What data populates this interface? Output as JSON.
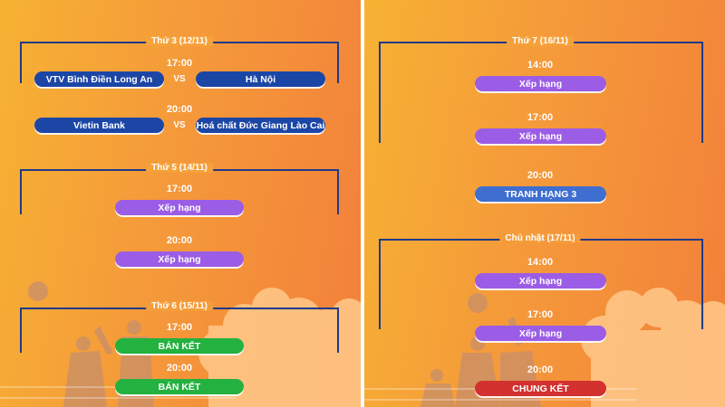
{
  "left": {
    "days": [
      {
        "label": "Thứ 3 (12/11)",
        "slots": [
          {
            "time": "17:00",
            "home": "VTV Bình Điền Long An",
            "vs": "VS",
            "away": "Hà Nội"
          },
          {
            "time": "20:00",
            "home": "Vietin Bank",
            "vs": "VS",
            "away": "Hoá chất Đức Giang Lào Cai"
          }
        ]
      },
      {
        "label": "Thứ 5 (14/11)",
        "slots": [
          {
            "time": "17:00",
            "match": "Xếp hạng"
          },
          {
            "time": "20:00",
            "match": "Xếp hạng"
          }
        ]
      },
      {
        "label": "Thứ 6 (15/11)",
        "slots": [
          {
            "time": "17:00",
            "match": "BÁN KẾT"
          },
          {
            "time": "20:00",
            "match": "BÁN KẾT"
          }
        ]
      }
    ]
  },
  "right": {
    "days": [
      {
        "label": "Thứ 7 (16/11)",
        "slots": [
          {
            "time": "14:00",
            "match": "Xếp hạng"
          },
          {
            "time": "17:00",
            "match": "Xếp hạng"
          },
          {
            "time": "20:00",
            "match": "TRANH HẠNG 3"
          }
        ]
      },
      {
        "label": "Chủ nhật (17/11)",
        "slots": [
          {
            "time": "14:00",
            "match": "Xếp hạng"
          },
          {
            "time": "17:00",
            "match": "Xếp hạng"
          },
          {
            "time": "20:00",
            "match": "CHUNG KẾT"
          }
        ]
      }
    ]
  },
  "colors": {
    "team": "#1c46a6",
    "ranking": "#9b5de5",
    "semifinal": "#23b13f",
    "third_place": "#3f6ed1",
    "final": "#d2312f",
    "bracket": "#1f3a8a"
  }
}
